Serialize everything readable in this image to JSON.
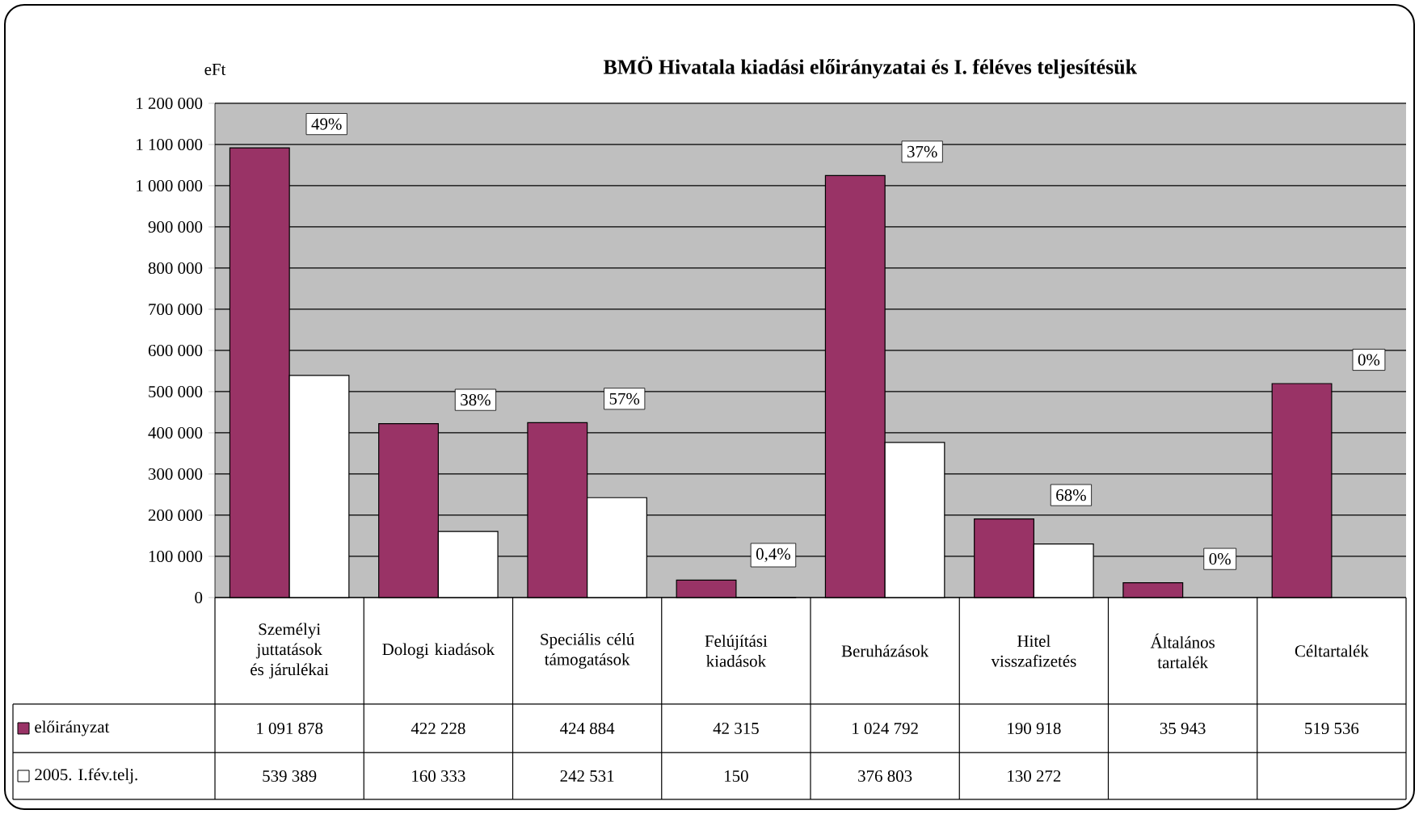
{
  "chart_data": {
    "type": "bar",
    "title": "BMÖ Hivatala kiadási előirányzatai és I. féléves teljesítésük",
    "ylabel": "eFt",
    "categories": [
      "Személyi juttatások és járulékai",
      "Dologi kiadások",
      "Speciális célú támogatások",
      "Felújítási kiadások",
      "Beruházások",
      "Hitel visszafizetés",
      "Általános tartalék",
      "Céltartalék"
    ],
    "series": [
      {
        "name": "előirányzat",
        "color": "#993366",
        "values": [
          1091878,
          422228,
          424884,
          42315,
          1024792,
          190918,
          35943,
          519536
        ],
        "value_labels": [
          "1 091 878",
          "422 228",
          "424 884",
          "42 315",
          "1 024 792",
          "190 918",
          "35 943",
          "519 536"
        ]
      },
      {
        "name": "2005. I.fév.telj.",
        "color": "#ffffff",
        "values": [
          539389,
          160333,
          242531,
          150,
          376803,
          130272,
          null,
          null
        ],
        "value_labels": [
          "539 389",
          "160 333",
          "242 531",
          "150",
          "376 803",
          "130 272",
          null,
          null
        ]
      }
    ],
    "ylim": [
      0,
      1200000
    ],
    "yticks": [
      {
        "value": 0,
        "label": "0"
      },
      {
        "value": 100000,
        "label": "100 000"
      },
      {
        "value": 200000,
        "label": "200 000"
      },
      {
        "value": 300000,
        "label": "300 000"
      },
      {
        "value": 400000,
        "label": "400 000"
      },
      {
        "value": 500000,
        "label": "500 000"
      },
      {
        "value": 600000,
        "label": "600 000"
      },
      {
        "value": 700000,
        "label": "700 000"
      },
      {
        "value": 800000,
        "label": "800 000"
      },
      {
        "value": 900000,
        "label": "900 000"
      },
      {
        "value": 1000000,
        "label": "1 000 000"
      },
      {
        "value": 1100000,
        "label": "1 100 000"
      },
      {
        "value": 1200000,
        "label": "1 200 000"
      }
    ],
    "grid": "y",
    "legend": "bottom left",
    "annotations": [
      "49%",
      "38%",
      "57%",
      "0,4%",
      "37%",
      "68%",
      "0%",
      "0%"
    ]
  }
}
